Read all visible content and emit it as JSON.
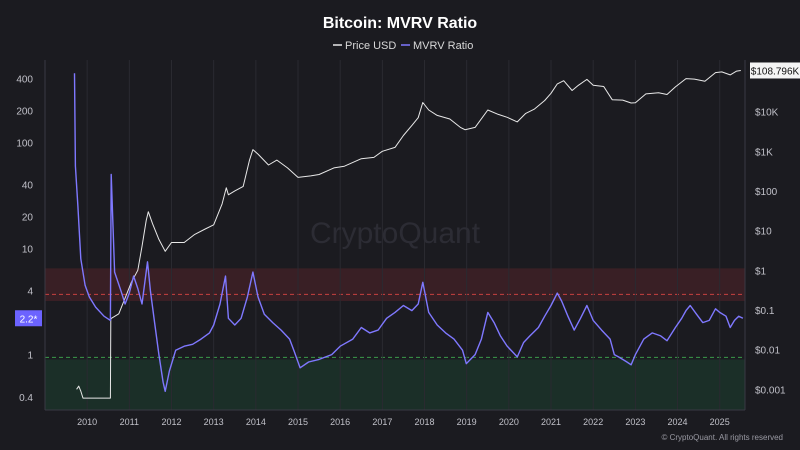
{
  "chart_data": {
    "type": "line",
    "title": "Bitcoin: MVRV Ratio",
    "legend_position": "top-center",
    "watermark": "CryptoQuant",
    "copyright": "© CryptoQuant. All rights reserved",
    "x_ticks": [
      "2010",
      "2011",
      "2012",
      "2013",
      "2014",
      "2015",
      "2016",
      "2017",
      "2018",
      "2019",
      "2020",
      "2021",
      "2022",
      "2023",
      "2024",
      "2025"
    ],
    "x_range": [
      2009.0,
      2025.6
    ],
    "left_axis": {
      "label": "",
      "scale": "log",
      "range": [
        0.3,
        600
      ],
      "ticks": [
        "400",
        "200",
        "100",
        "40",
        "20",
        "10",
        "4",
        "1",
        "0.4"
      ],
      "tick_values": [
        400,
        200,
        100,
        40,
        20,
        10,
        4,
        1,
        0.4
      ]
    },
    "right_axis": {
      "label": "",
      "scale": "log",
      "range": [
        0.0003,
        200000
      ],
      "ticks": [
        "$10K",
        "$1K",
        "$100",
        "$10",
        "$1",
        "$0.1",
        "$0.01",
        "$0.001"
      ],
      "tick_values": [
        10000,
        1000,
        100,
        10,
        1,
        0.1,
        0.01,
        0.001
      ]
    },
    "zones": [
      {
        "name": "overvalued",
        "from": 3.2,
        "to": 6.5,
        "color": "#f23645"
      },
      {
        "name": "undervalued",
        "from": 0.3,
        "to": 0.9,
        "color": "#1fa85a"
      }
    ],
    "threshold_lines": [
      {
        "value": 3.7,
        "color": "#c84040"
      },
      {
        "value": 0.94,
        "color": "#3a9a4a"
      }
    ],
    "current_mvrv_label": "2.2*",
    "current_mvrv_value": 2.2,
    "current_price_label": "$108.796K",
    "current_price_value": 108796,
    "series": [
      {
        "name": "Price USD",
        "axis": "right",
        "color": "#e8e8e8",
        "points": [
          [
            2009.75,
            0.001
          ],
          [
            2009.8,
            0.0012
          ],
          [
            2009.85,
            0.0009
          ],
          [
            2009.9,
            0.0006
          ],
          [
            2010.3,
            0.0006
          ],
          [
            2010.55,
            0.0006
          ],
          [
            2010.56,
            0.06
          ],
          [
            2010.75,
            0.08
          ],
          [
            2010.9,
            0.2
          ],
          [
            2011.05,
            0.5
          ],
          [
            2011.2,
            1.0
          ],
          [
            2011.3,
            4
          ],
          [
            2011.4,
            18
          ],
          [
            2011.45,
            30
          ],
          [
            2011.55,
            15
          ],
          [
            2011.7,
            6
          ],
          [
            2011.85,
            3
          ],
          [
            2012.0,
            5
          ],
          [
            2012.3,
            5
          ],
          [
            2012.55,
            8
          ],
          [
            2012.8,
            11
          ],
          [
            2013.0,
            14
          ],
          [
            2013.2,
            47
          ],
          [
            2013.3,
            120
          ],
          [
            2013.35,
            80
          ],
          [
            2013.5,
            100
          ],
          [
            2013.7,
            130
          ],
          [
            2013.85,
            600
          ],
          [
            2013.93,
            1100
          ],
          [
            2014.05,
            850
          ],
          [
            2014.3,
            450
          ],
          [
            2014.5,
            600
          ],
          [
            2014.75,
            380
          ],
          [
            2015.0,
            220
          ],
          [
            2015.3,
            240
          ],
          [
            2015.5,
            260
          ],
          [
            2015.85,
            380
          ],
          [
            2016.1,
            420
          ],
          [
            2016.5,
            650
          ],
          [
            2016.8,
            700
          ],
          [
            2017.0,
            1000
          ],
          [
            2017.3,
            1250
          ],
          [
            2017.5,
            2500
          ],
          [
            2017.7,
            4500
          ],
          [
            2017.85,
            7000
          ],
          [
            2017.96,
            17000
          ],
          [
            2018.1,
            11000
          ],
          [
            2018.3,
            8000
          ],
          [
            2018.6,
            6500
          ],
          [
            2018.85,
            4000
          ],
          [
            2018.96,
            3500
          ],
          [
            2019.2,
            4000
          ],
          [
            2019.5,
            11000
          ],
          [
            2019.75,
            8500
          ],
          [
            2019.96,
            7200
          ],
          [
            2020.2,
            5500
          ],
          [
            2020.4,
            9000
          ],
          [
            2020.6,
            11500
          ],
          [
            2020.85,
            19000
          ],
          [
            2021.0,
            29000
          ],
          [
            2021.15,
            50000
          ],
          [
            2021.3,
            60000
          ],
          [
            2021.5,
            34000
          ],
          [
            2021.65,
            46000
          ],
          [
            2021.85,
            65000
          ],
          [
            2022.0,
            46000
          ],
          [
            2022.25,
            43000
          ],
          [
            2022.45,
            20000
          ],
          [
            2022.7,
            19500
          ],
          [
            2022.9,
            16500
          ],
          [
            2023.0,
            16800
          ],
          [
            2023.25,
            28000
          ],
          [
            2023.55,
            30000
          ],
          [
            2023.75,
            27000
          ],
          [
            2023.95,
            42000
          ],
          [
            2024.2,
            68000
          ],
          [
            2024.4,
            66000
          ],
          [
            2024.65,
            58000
          ],
          [
            2024.9,
            96000
          ],
          [
            2025.05,
            100000
          ],
          [
            2025.25,
            84000
          ],
          [
            2025.4,
            105000
          ],
          [
            2025.5,
            108796
          ]
        ]
      },
      {
        "name": "MVRV Ratio",
        "axis": "left",
        "color": "#7f78ff",
        "points": [
          [
            2009.7,
            450
          ],
          [
            2009.72,
            60
          ],
          [
            2009.78,
            25
          ],
          [
            2009.85,
            8
          ],
          [
            2009.95,
            4.5
          ],
          [
            2010.05,
            3.5
          ],
          [
            2010.2,
            2.8
          ],
          [
            2010.4,
            2.3
          ],
          [
            2010.55,
            2.1
          ],
          [
            2010.57,
            50
          ],
          [
            2010.65,
            6
          ],
          [
            2010.8,
            4
          ],
          [
            2010.9,
            3
          ],
          [
            2011.0,
            3.8
          ],
          [
            2011.1,
            5.5
          ],
          [
            2011.2,
            4.2
          ],
          [
            2011.3,
            3.0
          ],
          [
            2011.43,
            7.5
          ],
          [
            2011.5,
            4
          ],
          [
            2011.6,
            2
          ],
          [
            2011.7,
            1.0
          ],
          [
            2011.8,
            0.55
          ],
          [
            2011.85,
            0.45
          ],
          [
            2011.95,
            0.7
          ],
          [
            2012.1,
            1.1
          ],
          [
            2012.3,
            1.2
          ],
          [
            2012.5,
            1.25
          ],
          [
            2012.7,
            1.4
          ],
          [
            2012.9,
            1.6
          ],
          [
            2013.0,
            1.9
          ],
          [
            2013.15,
            3.0
          ],
          [
            2013.28,
            5.5
          ],
          [
            2013.35,
            2.2
          ],
          [
            2013.5,
            1.9
          ],
          [
            2013.65,
            2.2
          ],
          [
            2013.8,
            3.5
          ],
          [
            2013.93,
            6.0
          ],
          [
            2014.05,
            3.5
          ],
          [
            2014.2,
            2.4
          ],
          [
            2014.4,
            2.0
          ],
          [
            2014.6,
            1.7
          ],
          [
            2014.8,
            1.4
          ],
          [
            2014.9,
            1.1
          ],
          [
            2015.05,
            0.75
          ],
          [
            2015.25,
            0.85
          ],
          [
            2015.5,
            0.9
          ],
          [
            2015.8,
            1.0
          ],
          [
            2016.0,
            1.2
          ],
          [
            2016.3,
            1.4
          ],
          [
            2016.5,
            1.8
          ],
          [
            2016.7,
            1.6
          ],
          [
            2016.9,
            1.7
          ],
          [
            2017.1,
            2.2
          ],
          [
            2017.3,
            2.5
          ],
          [
            2017.5,
            2.9
          ],
          [
            2017.7,
            2.6
          ],
          [
            2017.85,
            3.0
          ],
          [
            2017.96,
            4.8
          ],
          [
            2018.1,
            2.5
          ],
          [
            2018.3,
            1.9
          ],
          [
            2018.5,
            1.6
          ],
          [
            2018.7,
            1.4
          ],
          [
            2018.9,
            1.1
          ],
          [
            2018.99,
            0.82
          ],
          [
            2019.2,
            1.0
          ],
          [
            2019.35,
            1.4
          ],
          [
            2019.5,
            2.5
          ],
          [
            2019.65,
            2.0
          ],
          [
            2019.8,
            1.5
          ],
          [
            2019.96,
            1.2
          ],
          [
            2020.2,
            0.95
          ],
          [
            2020.35,
            1.3
          ],
          [
            2020.5,
            1.5
          ],
          [
            2020.7,
            1.8
          ],
          [
            2020.85,
            2.3
          ],
          [
            2021.0,
            2.9
          ],
          [
            2021.15,
            3.8
          ],
          [
            2021.25,
            3.2
          ],
          [
            2021.4,
            2.3
          ],
          [
            2021.55,
            1.7
          ],
          [
            2021.7,
            2.2
          ],
          [
            2021.85,
            2.9
          ],
          [
            2022.0,
            2.1
          ],
          [
            2022.2,
            1.7
          ],
          [
            2022.4,
            1.4
          ],
          [
            2022.5,
            1.0
          ],
          [
            2022.6,
            0.95
          ],
          [
            2022.7,
            0.9
          ],
          [
            2022.8,
            0.85
          ],
          [
            2022.9,
            0.8
          ],
          [
            2023.0,
            1.0
          ],
          [
            2023.2,
            1.4
          ],
          [
            2023.4,
            1.6
          ],
          [
            2023.6,
            1.5
          ],
          [
            2023.75,
            1.35
          ],
          [
            2023.95,
            1.8
          ],
          [
            2024.1,
            2.2
          ],
          [
            2024.2,
            2.6
          ],
          [
            2024.3,
            2.9
          ],
          [
            2024.45,
            2.4
          ],
          [
            2024.6,
            2.0
          ],
          [
            2024.75,
            2.1
          ],
          [
            2024.9,
            2.7
          ],
          [
            2025.0,
            2.5
          ],
          [
            2025.15,
            2.3
          ],
          [
            2025.25,
            1.8
          ],
          [
            2025.35,
            2.1
          ],
          [
            2025.45,
            2.3
          ],
          [
            2025.55,
            2.2
          ]
        ]
      }
    ]
  }
}
